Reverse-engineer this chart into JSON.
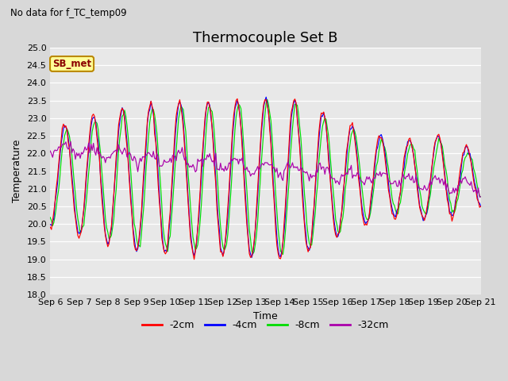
{
  "title": "Thermocouple Set B",
  "subtitle": "No data for f_TC_temp09",
  "xlabel": "Time",
  "ylabel": "Temperature",
  "xlim": [
    0,
    15
  ],
  "ylim": [
    18.0,
    25.0
  ],
  "yticks": [
    18.0,
    18.5,
    19.0,
    19.5,
    20.0,
    20.5,
    21.0,
    21.5,
    22.0,
    22.5,
    23.0,
    23.5,
    24.0,
    24.5,
    25.0
  ],
  "xtick_labels": [
    "Sep 6",
    "Sep 7",
    "Sep 8",
    "Sep 9",
    "Sep 10",
    "Sep 11",
    "Sep 12",
    "Sep 13",
    "Sep 14",
    "Sep 15",
    "Sep 16",
    "Sep 17",
    "Sep 18",
    "Sep 19",
    "Sep 20",
    "Sep 21"
  ],
  "legend_labels": [
    "-2cm",
    "-4cm",
    "-8cm",
    "-32cm"
  ],
  "line_colors": [
    "#ff0000",
    "#0000ff",
    "#00dd00",
    "#aa00aa"
  ],
  "annotation_text": "SB_met",
  "annotation_box_color": "#ffff99",
  "annotation_border_color": "#bb8800",
  "plot_bg_color": "#e8e8e8",
  "fig_bg_color": "#d8d8d8",
  "title_fontsize": 13,
  "axis_fontsize": 9,
  "tick_fontsize": 8,
  "legend_fontsize": 9
}
